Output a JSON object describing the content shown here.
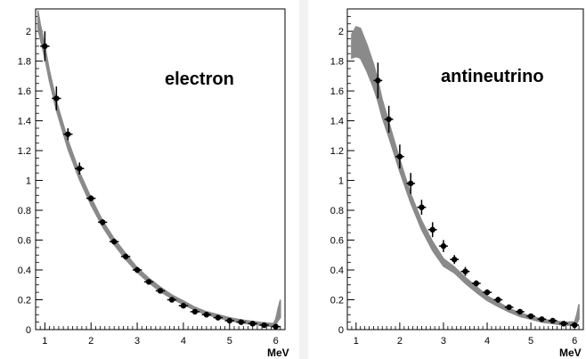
{
  "chart_data": [
    {
      "type": "scatter",
      "annotation": "electron",
      "xlabel": "MeV",
      "ylabel": "",
      "xlim": [
        0.8,
        6.2
      ],
      "ylim": [
        0,
        2.15
      ],
      "x_ticks": [
        "1",
        "2",
        "3",
        "4",
        "5",
        "6"
      ],
      "y_ticks": [
        "0",
        "0.2",
        "0.4",
        "0.6",
        "0.8",
        "1",
        "1.2",
        "1.4",
        "1.6",
        "1.8",
        "2"
      ],
      "band_color": "#8a8a8a",
      "point_color": "#000000",
      "theory_band": {
        "x": [
          0.85,
          0.9,
          1.0,
          1.1,
          1.25,
          1.5,
          1.75,
          2.0,
          2.25,
          2.5,
          2.75,
          3.0,
          3.25,
          3.5,
          3.75,
          4.0,
          4.25,
          4.5,
          4.75,
          5.0,
          5.25,
          5.5,
          5.75,
          5.95,
          6.0,
          6.05,
          6.1
        ],
        "y": [
          2.08,
          2.0,
          1.86,
          1.7,
          1.5,
          1.24,
          1.03,
          0.86,
          0.71,
          0.59,
          0.49,
          0.4,
          0.33,
          0.27,
          0.22,
          0.18,
          0.14,
          0.11,
          0.09,
          0.07,
          0.055,
          0.045,
          0.035,
          0.03,
          0.05,
          0.1,
          0.14
        ],
        "width": [
          0.06,
          0.05,
          0.04,
          0.035,
          0.03,
          0.03,
          0.025,
          0.025,
          0.02,
          0.02,
          0.02,
          0.015,
          0.015,
          0.015,
          0.012,
          0.012,
          0.01,
          0.01,
          0.01,
          0.01,
          0.01,
          0.01,
          0.01,
          0.01,
          0.02,
          0.04,
          0.06
        ]
      },
      "points": {
        "x": [
          1.0,
          1.25,
          1.5,
          1.75,
          2.0,
          2.25,
          2.5,
          2.75,
          3.0,
          3.25,
          3.5,
          3.75,
          4.0,
          4.25,
          4.5,
          4.75,
          5.0,
          5.25,
          5.5,
          5.75,
          6.0
        ],
        "y": [
          1.9,
          1.55,
          1.31,
          1.08,
          0.88,
          0.72,
          0.59,
          0.49,
          0.4,
          0.32,
          0.26,
          0.2,
          0.16,
          0.12,
          0.1,
          0.08,
          0.06,
          0.05,
          0.04,
          0.03,
          0.02
        ],
        "yerr": [
          0.1,
          0.08,
          0.04,
          0.04,
          0.02,
          0.02,
          0.02,
          0.02,
          0.02,
          0.01,
          0.01,
          0.01,
          0.01,
          0.01,
          0.01,
          0.01,
          0.01,
          0.01,
          0.01,
          0.01,
          0.01
        ],
        "xerr": 0.1
      }
    },
    {
      "type": "scatter",
      "annotation": "antineutrino",
      "xlabel": "MeV",
      "ylabel": "",
      "xlim": [
        0.8,
        6.2
      ],
      "ylim": [
        0,
        2.15
      ],
      "x_ticks": [
        "1",
        "2",
        "3",
        "4",
        "5",
        "6"
      ],
      "y_ticks": [
        "0",
        "0.2",
        "0.4",
        "0.6",
        "0.8",
        "1",
        "1.2",
        "1.4",
        "1.6",
        "1.8",
        "2"
      ],
      "band_color": "#8a8a8a",
      "point_color": "#000000",
      "theory_band": {
        "x": [
          0.9,
          1.0,
          1.1,
          1.25,
          1.4,
          1.5,
          1.6,
          1.75,
          2.0,
          2.25,
          2.5,
          2.75,
          3.0,
          3.25,
          3.5,
          3.75,
          4.0,
          4.25,
          4.5,
          4.75,
          5.0,
          5.25,
          5.5,
          5.75,
          6.0,
          6.05,
          6.1
        ],
        "y": [
          1.9,
          1.93,
          1.92,
          1.82,
          1.7,
          1.6,
          1.48,
          1.34,
          1.1,
          0.88,
          0.7,
          0.56,
          0.45,
          0.4,
          0.33,
          0.27,
          0.21,
          0.17,
          0.13,
          0.1,
          0.08,
          0.06,
          0.05,
          0.04,
          0.04,
          0.07,
          0.12
        ],
        "width": [
          0.08,
          0.1,
          0.1,
          0.09,
          0.08,
          0.07,
          0.06,
          0.05,
          0.04,
          0.03,
          0.03,
          0.03,
          0.025,
          0.02,
          0.02,
          0.02,
          0.015,
          0.015,
          0.012,
          0.012,
          0.01,
          0.01,
          0.01,
          0.01,
          0.012,
          0.03,
          0.05
        ]
      },
      "points": {
        "x": [
          1.5,
          1.75,
          2.0,
          2.25,
          2.5,
          2.75,
          3.0,
          3.25,
          3.5,
          3.75,
          4.0,
          4.25,
          4.5,
          4.75,
          5.0,
          5.25,
          5.5,
          5.75,
          6.0
        ],
        "y": [
          1.67,
          1.41,
          1.16,
          0.98,
          0.82,
          0.67,
          0.56,
          0.47,
          0.39,
          0.31,
          0.25,
          0.2,
          0.15,
          0.12,
          0.09,
          0.07,
          0.06,
          0.04,
          0.03
        ],
        "yerr": [
          0.12,
          0.09,
          0.08,
          0.07,
          0.05,
          0.05,
          0.04,
          0.03,
          0.03,
          0.02,
          0.02,
          0.02,
          0.01,
          0.01,
          0.01,
          0.01,
          0.01,
          0.01,
          0.01
        ],
        "xerr": 0.1
      }
    }
  ]
}
